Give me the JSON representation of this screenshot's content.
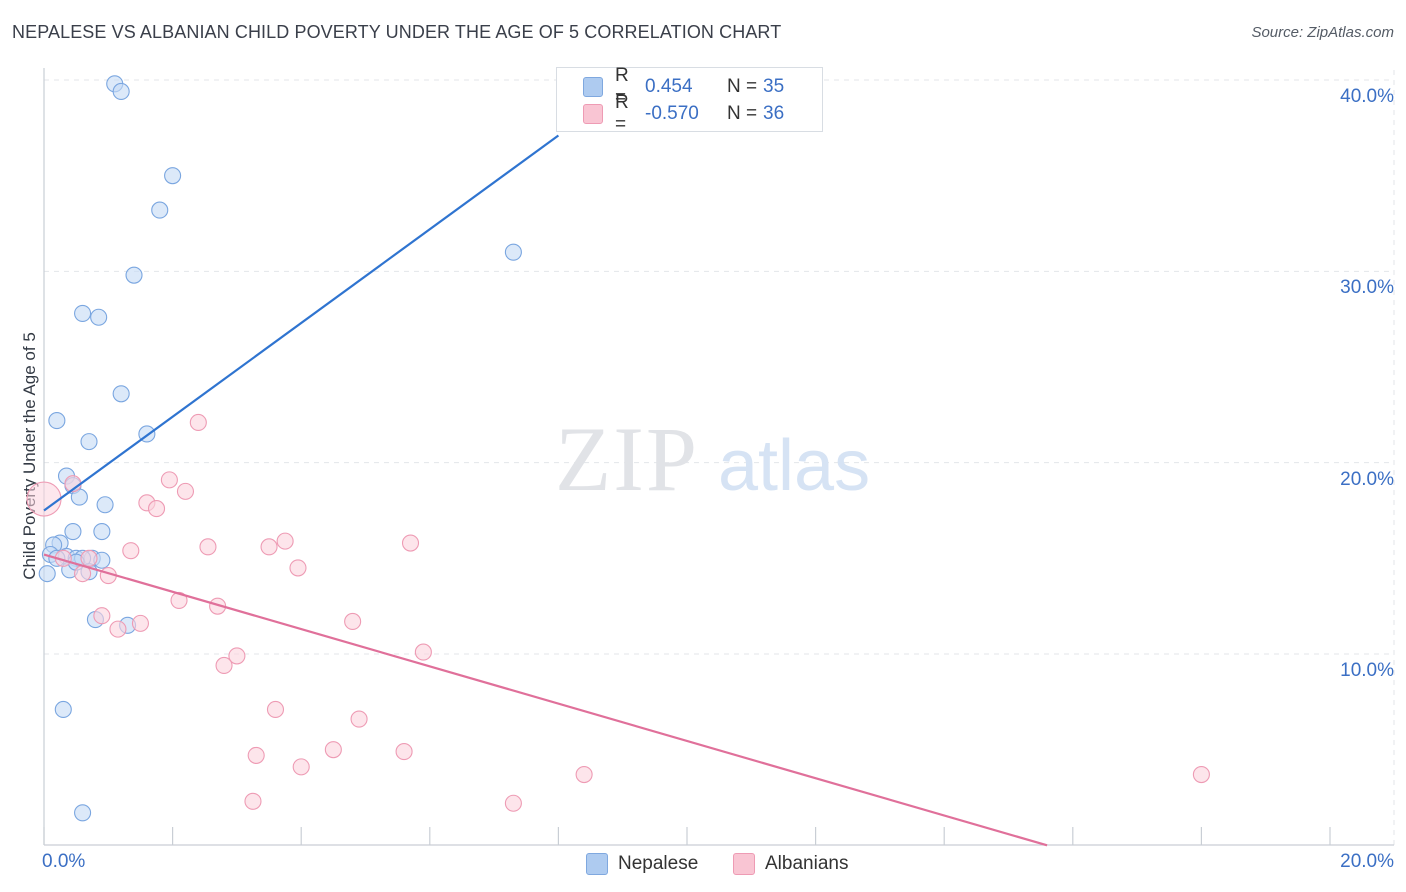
{
  "title": "NEPALESE VS ALBANIAN CHILD POVERTY UNDER THE AGE OF 5 CORRELATION CHART",
  "source": "Source: ZipAtlas.com",
  "watermark": {
    "zip": "ZIP",
    "atlas": "atlas"
  },
  "legend": {
    "rows": [
      {
        "r_label": "R =",
        "r_value": "0.454",
        "n_label": "N =",
        "n_value": "35",
        "color": "#aecbf0",
        "border": "#7fa8df"
      },
      {
        "r_label": "R =",
        "r_value": "-0.570",
        "n_label": "N =",
        "n_value": "36",
        "color": "#f9c5d3",
        "border": "#ee9bb4"
      }
    ]
  },
  "bottom_legend": [
    {
      "label": "Nepalese",
      "color": "#aecbf0",
      "border": "#7fa8df"
    },
    {
      "label": "Albanians",
      "color": "#f9c5d3",
      "border": "#ee9bb4"
    }
  ],
  "chart_data": {
    "type": "scatter",
    "title": "NEPALESE VS ALBANIAN CHILD POVERTY UNDER THE AGE OF 5 CORRELATION CHART",
    "xlabel": "",
    "ylabel": "Child Poverty Under the Age of 5",
    "xlim": [
      0,
      20
    ],
    "ylim": [
      0,
      40
    ],
    "x_tick_labels": [
      {
        "value": 0,
        "label": "0.0%"
      },
      {
        "value": 20,
        "label": "20.0%"
      }
    ],
    "y_tick_labels": [
      {
        "value": 10,
        "label": "10.0%"
      },
      {
        "value": 20,
        "label": "20.0%"
      },
      {
        "value": 30,
        "label": "30.0%"
      },
      {
        "value": 40,
        "label": "40.0%"
      }
    ],
    "series": [
      {
        "name": "Nepalese",
        "color": "#7aa6e0",
        "fill": "#c5daf5",
        "line_color": "#2f74d0",
        "trend": {
          "x0": 0.0,
          "y0": 17.5,
          "x1": 8.0,
          "y1": 37.1
        },
        "points": [
          [
            1.1,
            39.8
          ],
          [
            1.2,
            39.4
          ],
          [
            2.0,
            35.0
          ],
          [
            1.8,
            33.2
          ],
          [
            1.4,
            29.8
          ],
          [
            7.3,
            31.0
          ],
          [
            0.6,
            27.8
          ],
          [
            0.85,
            27.6
          ],
          [
            1.2,
            23.6
          ],
          [
            0.2,
            22.2
          ],
          [
            0.7,
            21.1
          ],
          [
            1.6,
            21.5
          ],
          [
            0.35,
            19.3
          ],
          [
            0.45,
            18.8
          ],
          [
            0.55,
            18.2
          ],
          [
            0.95,
            17.8
          ],
          [
            0.45,
            16.4
          ],
          [
            0.9,
            16.4
          ],
          [
            0.25,
            15.8
          ],
          [
            0.15,
            15.7
          ],
          [
            0.1,
            15.2
          ],
          [
            0.35,
            15.1
          ],
          [
            0.5,
            15.0
          ],
          [
            0.75,
            15.0
          ],
          [
            0.9,
            14.9
          ],
          [
            0.6,
            15.0
          ],
          [
            0.4,
            14.4
          ],
          [
            0.7,
            14.3
          ],
          [
            0.05,
            14.2
          ],
          [
            0.8,
            11.8
          ],
          [
            1.3,
            11.5
          ],
          [
            0.3,
            7.1
          ],
          [
            0.6,
            1.7
          ],
          [
            0.2,
            15.0
          ],
          [
            0.5,
            14.8
          ]
        ]
      },
      {
        "name": "Albanians",
        "color": "#ee9bb4",
        "fill": "#fbd3de",
        "line_color": "#e0709a",
        "trend": {
          "x0": 0.0,
          "y0": 15.2,
          "x1": 15.6,
          "y1": 0.0
        },
        "points": [
          [
            0.0,
            18.1
          ],
          [
            0.45,
            18.9
          ],
          [
            0.7,
            15.0
          ],
          [
            1.35,
            15.4
          ],
          [
            1.6,
            17.9
          ],
          [
            1.75,
            17.6
          ],
          [
            1.95,
            19.1
          ],
          [
            2.2,
            18.5
          ],
          [
            2.4,
            22.1
          ],
          [
            2.55,
            15.6
          ],
          [
            3.5,
            15.6
          ],
          [
            3.75,
            15.9
          ],
          [
            3.95,
            14.5
          ],
          [
            5.7,
            15.8
          ],
          [
            0.6,
            14.2
          ],
          [
            1.0,
            14.1
          ],
          [
            0.9,
            12.0
          ],
          [
            1.15,
            11.3
          ],
          [
            1.5,
            11.6
          ],
          [
            2.1,
            12.8
          ],
          [
            2.7,
            12.5
          ],
          [
            4.8,
            11.7
          ],
          [
            5.9,
            10.1
          ],
          [
            3.0,
            9.9
          ],
          [
            2.8,
            9.4
          ],
          [
            3.6,
            7.1
          ],
          [
            4.9,
            6.6
          ],
          [
            3.3,
            4.7
          ],
          [
            4.5,
            5.0
          ],
          [
            5.6,
            4.9
          ],
          [
            4.0,
            4.1
          ],
          [
            8.4,
            3.7
          ],
          [
            18.0,
            3.7
          ],
          [
            3.25,
            2.3
          ],
          [
            7.3,
            2.2
          ],
          [
            0.3,
            15.0
          ]
        ]
      }
    ]
  }
}
